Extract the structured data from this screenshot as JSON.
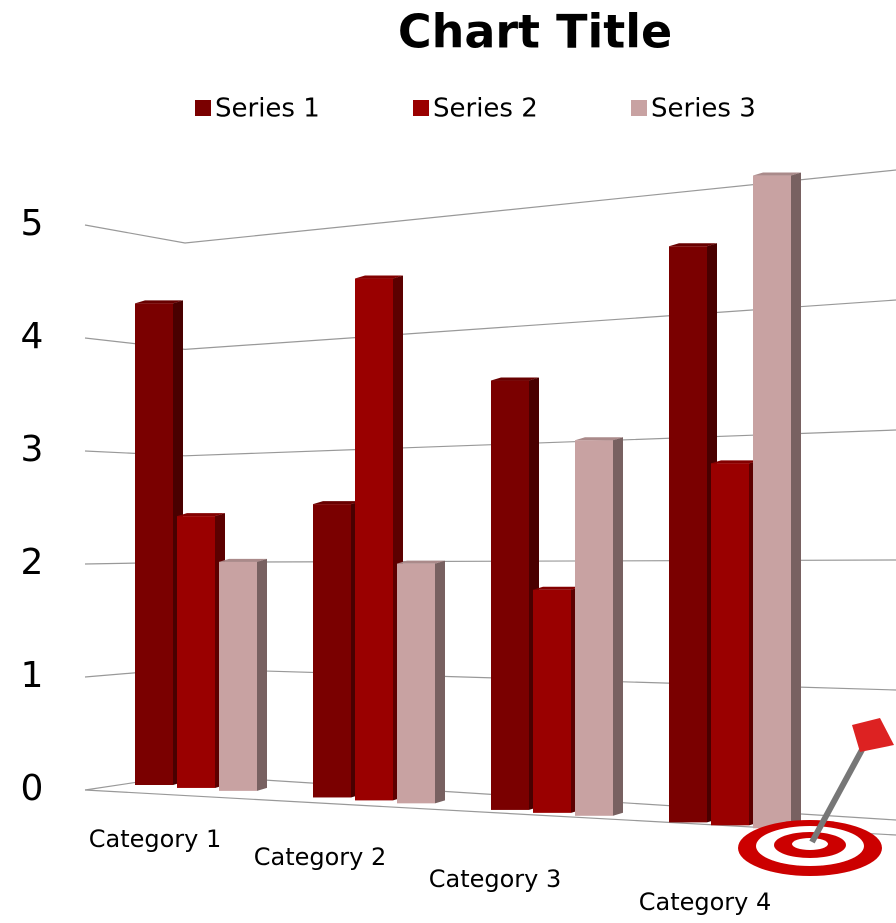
{
  "chart_data": {
    "type": "bar3d",
    "title": "Chart Title",
    "categories": [
      "Category 1",
      "Category 2",
      "Category 3",
      "Category 4"
    ],
    "series": [
      {
        "name": "Series 1",
        "color": "#7a0000",
        "values": [
          4.3,
          2.5,
          3.5,
          4.5
        ]
      },
      {
        "name": "Series 2",
        "color": "#9a0000",
        "values": [
          2.4,
          4.4,
          1.8,
          2.8
        ]
      },
      {
        "name": "Series 3",
        "color": "#c8a2a2",
        "values": [
          2,
          2,
          3,
          5
        ]
      }
    ],
    "ylim": [
      0,
      5
    ],
    "yticks": [
      0,
      1,
      2,
      3,
      4,
      5
    ],
    "grid": true,
    "legend": "top"
  }
}
